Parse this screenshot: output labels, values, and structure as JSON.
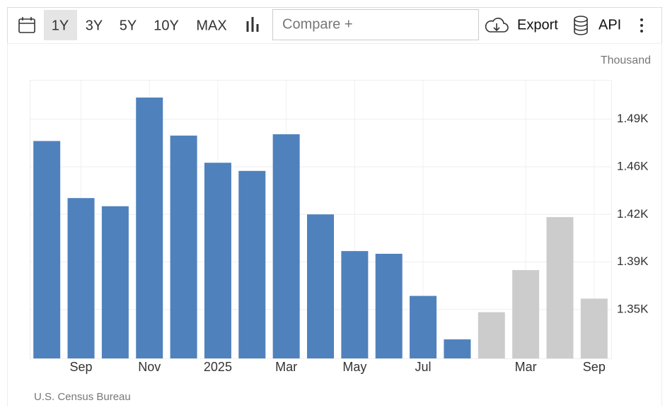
{
  "toolbar": {
    "ranges": [
      "1Y",
      "3Y",
      "5Y",
      "10Y",
      "MAX"
    ],
    "compare": "Compare +",
    "export": "Export",
    "api": "API"
  },
  "chart_data": {
    "type": "bar",
    "unit_label": "Thousand",
    "source": "U.S. Census Bureau",
    "categories": [
      null,
      "Sep",
      null,
      "Nov",
      null,
      "2025",
      null,
      "Mar",
      null,
      "May",
      null,
      "Jul",
      null,
      null,
      "Mar",
      null,
      "Sep"
    ],
    "series": [
      {
        "color": "#4f81bd",
        "values": [
          1474,
          1432,
          1426,
          1506,
          1478,
          1458,
          1452,
          1479,
          1420,
          1393,
          1391,
          1360,
          1328,
          null,
          null,
          null,
          null
        ]
      },
      {
        "color": "#cccccc",
        "values": [
          null,
          null,
          null,
          null,
          null,
          null,
          null,
          null,
          null,
          null,
          null,
          null,
          null,
          1348,
          1379,
          1418,
          1358
        ]
      }
    ],
    "ylim": [
      1314,
      1519
    ],
    "yticks": [
      {
        "value": 1350,
        "label": "1.35K"
      },
      {
        "value": 1385,
        "label": "1.39K"
      },
      {
        "value": 1420,
        "label": "1.42K"
      },
      {
        "value": 1455,
        "label": "1.46K"
      },
      {
        "value": 1490,
        "label": "1.49K"
      }
    ],
    "grid": true
  }
}
